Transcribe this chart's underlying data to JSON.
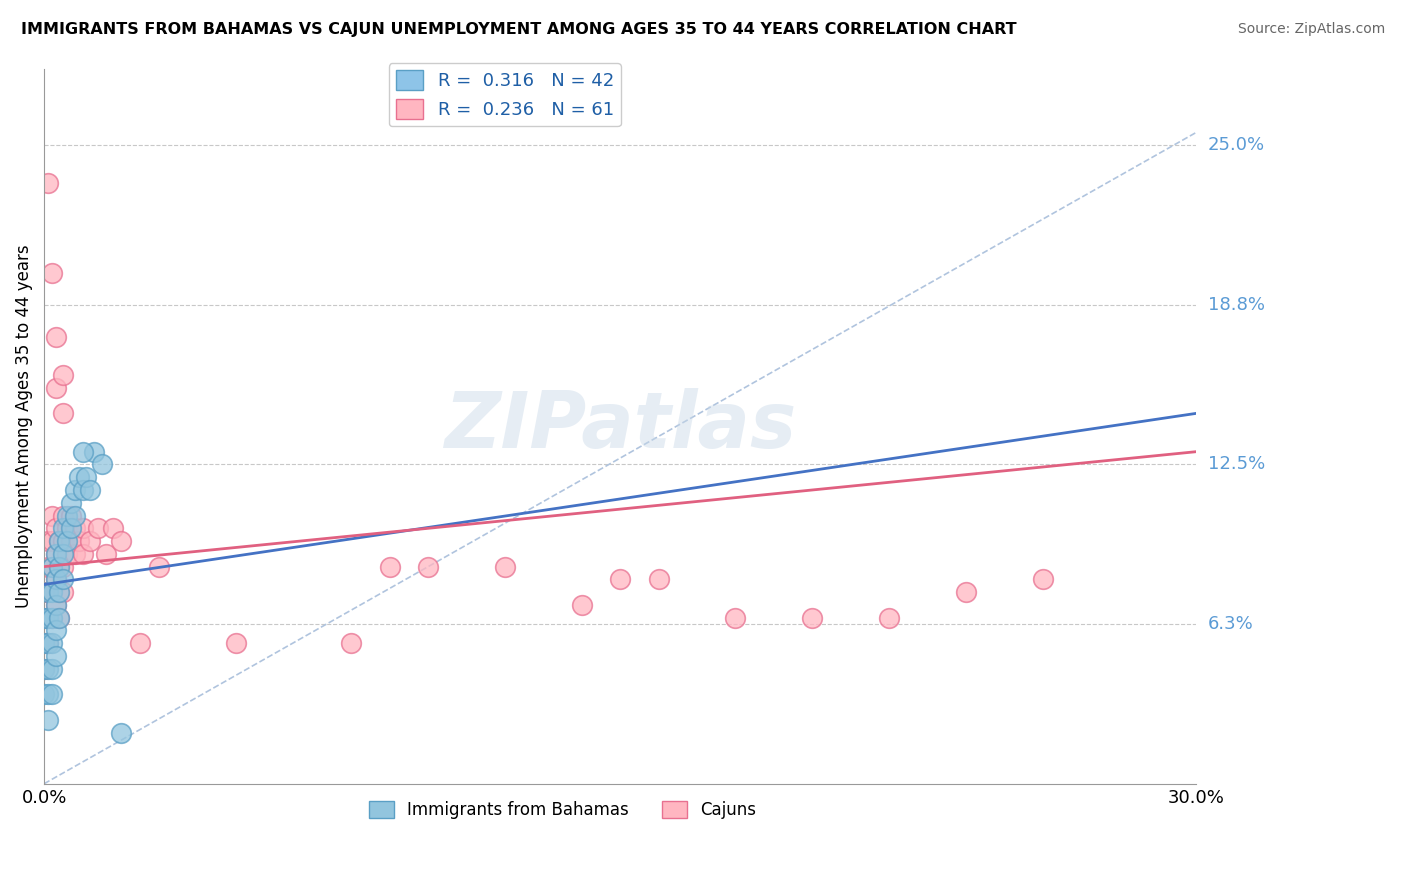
{
  "title": "IMMIGRANTS FROM BAHAMAS VS CAJUN UNEMPLOYMENT AMONG AGES 35 TO 44 YEARS CORRELATION CHART",
  "source": "Source: ZipAtlas.com",
  "ylabel": "Unemployment Among Ages 35 to 44 years",
  "xlim": [
    0.0,
    0.3
  ],
  "ylim": [
    0.0,
    0.28
  ],
  "y_tick_values": [
    0.0625,
    0.125,
    0.1875,
    0.25
  ],
  "y_tick_labels": [
    "6.3%",
    "12.5%",
    "18.8%",
    "25.0%"
  ],
  "legend_entries": [
    {
      "label": "R =  0.316   N = 42",
      "color": "#8ec4e8"
    },
    {
      "label": "R =  0.236   N = 61",
      "color": "#ffb6c1"
    }
  ],
  "background_color": "#ffffff",
  "grid_color": "#c8c8c8",
  "bahamas_color": "#92c5de",
  "cajun_color": "#ffb6c1",
  "bahamas_edge_color": "#5a9fc5",
  "cajun_edge_color": "#e87090",
  "bahamas_trend_color": "#4472c4",
  "cajun_trend_color": "#e06080",
  "ref_line_color": "#b0c4de",
  "bahamas_points": [
    [
      0.0,
      0.065
    ],
    [
      0.0,
      0.055
    ],
    [
      0.0,
      0.045
    ],
    [
      0.0,
      0.035
    ],
    [
      0.001,
      0.075
    ],
    [
      0.001,
      0.065
    ],
    [
      0.001,
      0.055
    ],
    [
      0.001,
      0.045
    ],
    [
      0.001,
      0.035
    ],
    [
      0.001,
      0.025
    ],
    [
      0.002,
      0.085
    ],
    [
      0.002,
      0.075
    ],
    [
      0.002,
      0.065
    ],
    [
      0.002,
      0.055
    ],
    [
      0.002,
      0.045
    ],
    [
      0.002,
      0.035
    ],
    [
      0.003,
      0.09
    ],
    [
      0.003,
      0.08
    ],
    [
      0.003,
      0.07
    ],
    [
      0.003,
      0.06
    ],
    [
      0.003,
      0.05
    ],
    [
      0.004,
      0.095
    ],
    [
      0.004,
      0.085
    ],
    [
      0.004,
      0.075
    ],
    [
      0.004,
      0.065
    ],
    [
      0.005,
      0.1
    ],
    [
      0.005,
      0.09
    ],
    [
      0.005,
      0.08
    ],
    [
      0.006,
      0.105
    ],
    [
      0.006,
      0.095
    ],
    [
      0.007,
      0.11
    ],
    [
      0.007,
      0.1
    ],
    [
      0.008,
      0.115
    ],
    [
      0.008,
      0.105
    ],
    [
      0.009,
      0.12
    ],
    [
      0.01,
      0.115
    ],
    [
      0.011,
      0.12
    ],
    [
      0.012,
      0.115
    ],
    [
      0.013,
      0.13
    ],
    [
      0.015,
      0.125
    ],
    [
      0.02,
      0.02
    ],
    [
      0.01,
      0.13
    ]
  ],
  "cajun_points": [
    [
      0.001,
      0.235
    ],
    [
      0.002,
      0.2
    ],
    [
      0.003,
      0.175
    ],
    [
      0.003,
      0.155
    ],
    [
      0.005,
      0.16
    ],
    [
      0.005,
      0.145
    ],
    [
      0.0,
      0.075
    ],
    [
      0.0,
      0.065
    ],
    [
      0.0,
      0.055
    ],
    [
      0.0,
      0.045
    ],
    [
      0.001,
      0.095
    ],
    [
      0.001,
      0.085
    ],
    [
      0.001,
      0.075
    ],
    [
      0.001,
      0.065
    ],
    [
      0.001,
      0.055
    ],
    [
      0.002,
      0.105
    ],
    [
      0.002,
      0.095
    ],
    [
      0.002,
      0.085
    ],
    [
      0.002,
      0.075
    ],
    [
      0.002,
      0.065
    ],
    [
      0.003,
      0.1
    ],
    [
      0.003,
      0.09
    ],
    [
      0.003,
      0.08
    ],
    [
      0.003,
      0.07
    ],
    [
      0.004,
      0.095
    ],
    [
      0.004,
      0.085
    ],
    [
      0.004,
      0.075
    ],
    [
      0.004,
      0.065
    ],
    [
      0.005,
      0.105
    ],
    [
      0.005,
      0.095
    ],
    [
      0.005,
      0.085
    ],
    [
      0.005,
      0.075
    ],
    [
      0.006,
      0.1
    ],
    [
      0.006,
      0.09
    ],
    [
      0.007,
      0.105
    ],
    [
      0.007,
      0.095
    ],
    [
      0.008,
      0.1
    ],
    [
      0.008,
      0.09
    ],
    [
      0.009,
      0.095
    ],
    [
      0.01,
      0.1
    ],
    [
      0.01,
      0.09
    ],
    [
      0.012,
      0.095
    ],
    [
      0.014,
      0.1
    ],
    [
      0.016,
      0.09
    ],
    [
      0.018,
      0.1
    ],
    [
      0.02,
      0.095
    ],
    [
      0.025,
      0.055
    ],
    [
      0.03,
      0.085
    ],
    [
      0.05,
      0.055
    ],
    [
      0.08,
      0.055
    ],
    [
      0.09,
      0.085
    ],
    [
      0.1,
      0.085
    ],
    [
      0.12,
      0.085
    ],
    [
      0.14,
      0.07
    ],
    [
      0.15,
      0.08
    ],
    [
      0.16,
      0.08
    ],
    [
      0.18,
      0.065
    ],
    [
      0.2,
      0.065
    ],
    [
      0.22,
      0.065
    ],
    [
      0.24,
      0.075
    ],
    [
      0.26,
      0.08
    ]
  ],
  "bahamas_trend": [
    0.0,
    0.3,
    0.078,
    0.145
  ],
  "cajun_trend": [
    0.0,
    0.3,
    0.085,
    0.13
  ],
  "ref_line": [
    0.0,
    0.3,
    0.0,
    0.255
  ]
}
